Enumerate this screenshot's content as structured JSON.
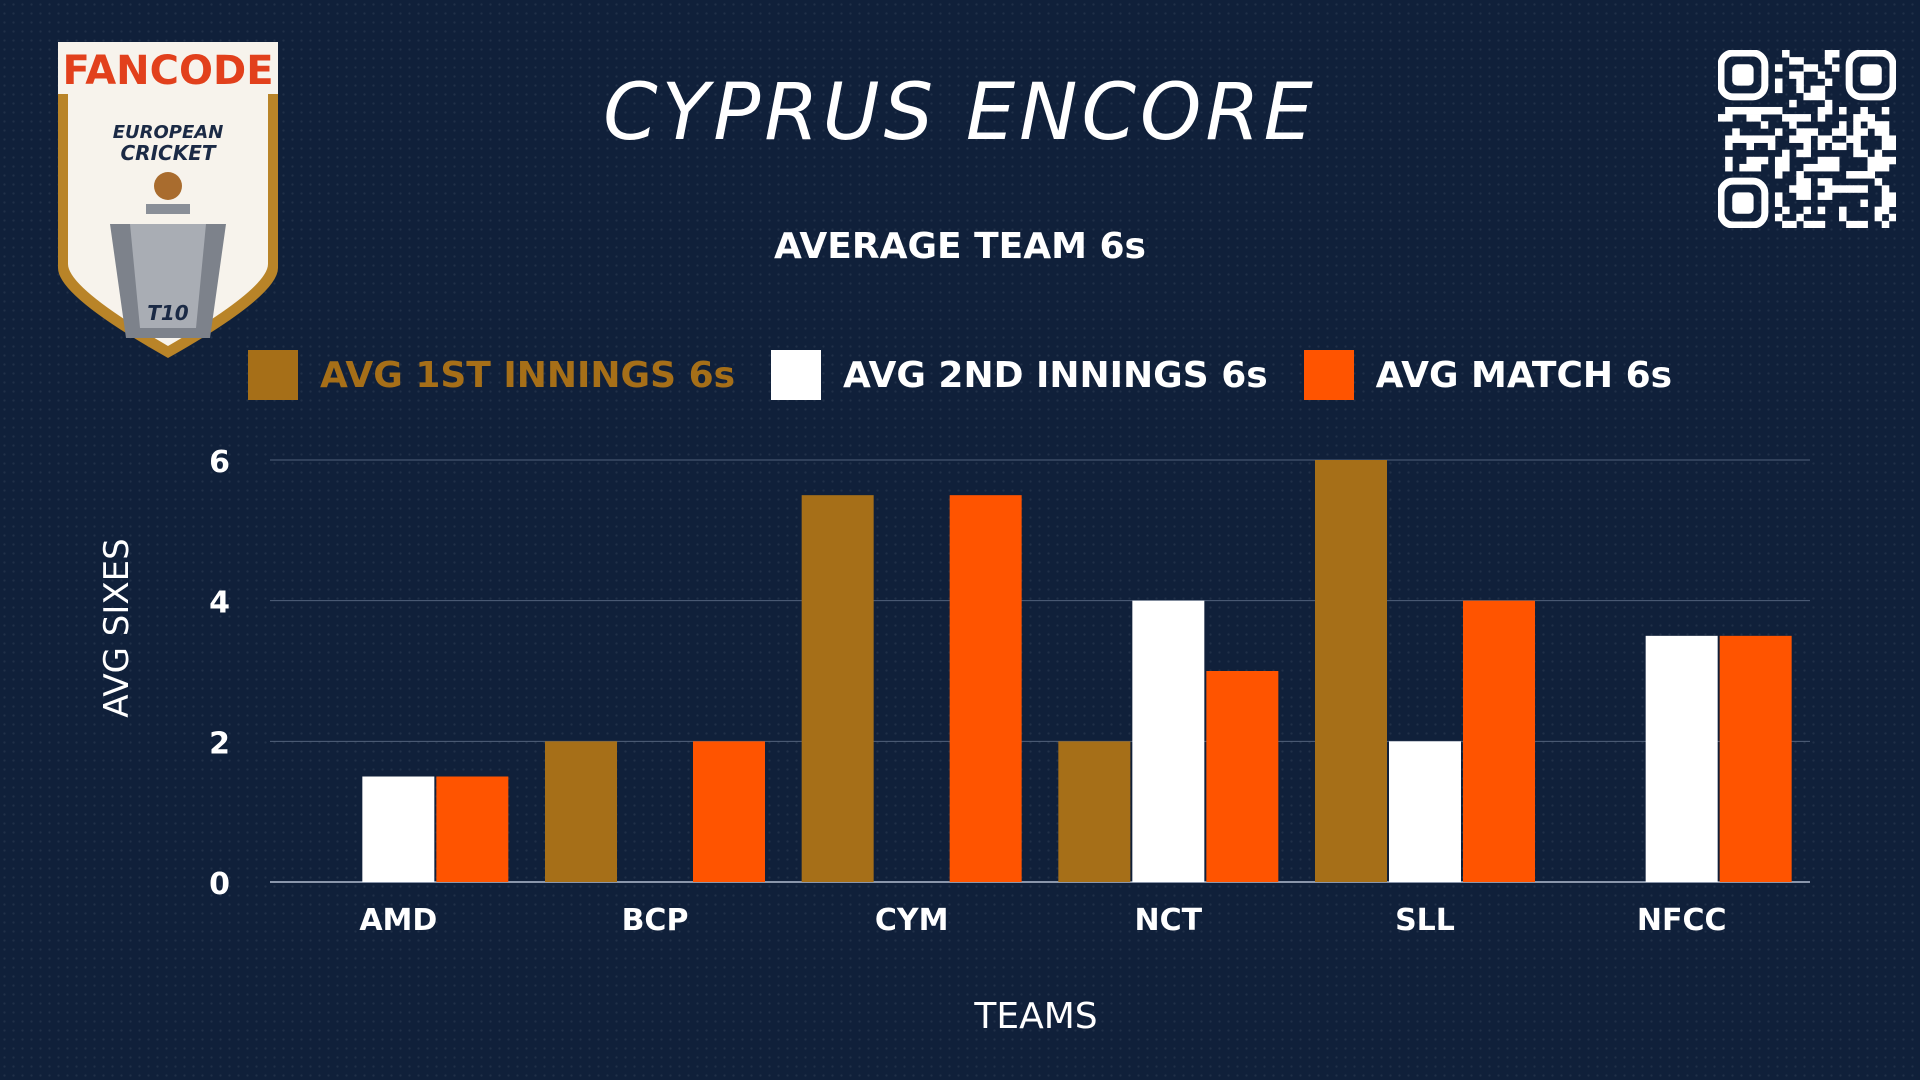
{
  "header": {
    "brand_logo": {
      "brand": "FANCODE",
      "line1": "EUROPEAN",
      "line2": "CRICKET",
      "badge": "T10"
    },
    "title": "CYPRUS ENCORE",
    "qr_icon": "qr-code-icon"
  },
  "colors": {
    "background": "#10203a",
    "first_innings": "#a66f18",
    "second_innings": "#ffffff",
    "match": "#ff5400",
    "grid": "#51607a"
  },
  "chart_data": {
    "type": "bar",
    "title": "AVERAGE TEAM 6s",
    "xlabel": "TEAMS",
    "ylabel": "AVG SIXES",
    "ylim": [
      0,
      6
    ],
    "yticks": [
      "0",
      "2",
      "4",
      "6"
    ],
    "categories": [
      "AMD",
      "BCP",
      "CYM",
      "NCT",
      "SLL",
      "NFCC"
    ],
    "legend_position": "top",
    "grid": true,
    "series": [
      {
        "name": "AVG 1ST INNINGS 6s",
        "color": "#a66f18",
        "values": [
          0,
          2,
          5.5,
          2,
          6,
          0
        ]
      },
      {
        "name": "AVG 2ND INNINGS 6s",
        "color": "#ffffff",
        "values": [
          1.5,
          0,
          0,
          4,
          2,
          3.5
        ]
      },
      {
        "name": "AVG MATCH 6s",
        "color": "#ff5400",
        "values": [
          1.5,
          2,
          5.5,
          3,
          4,
          3.5
        ]
      }
    ]
  }
}
